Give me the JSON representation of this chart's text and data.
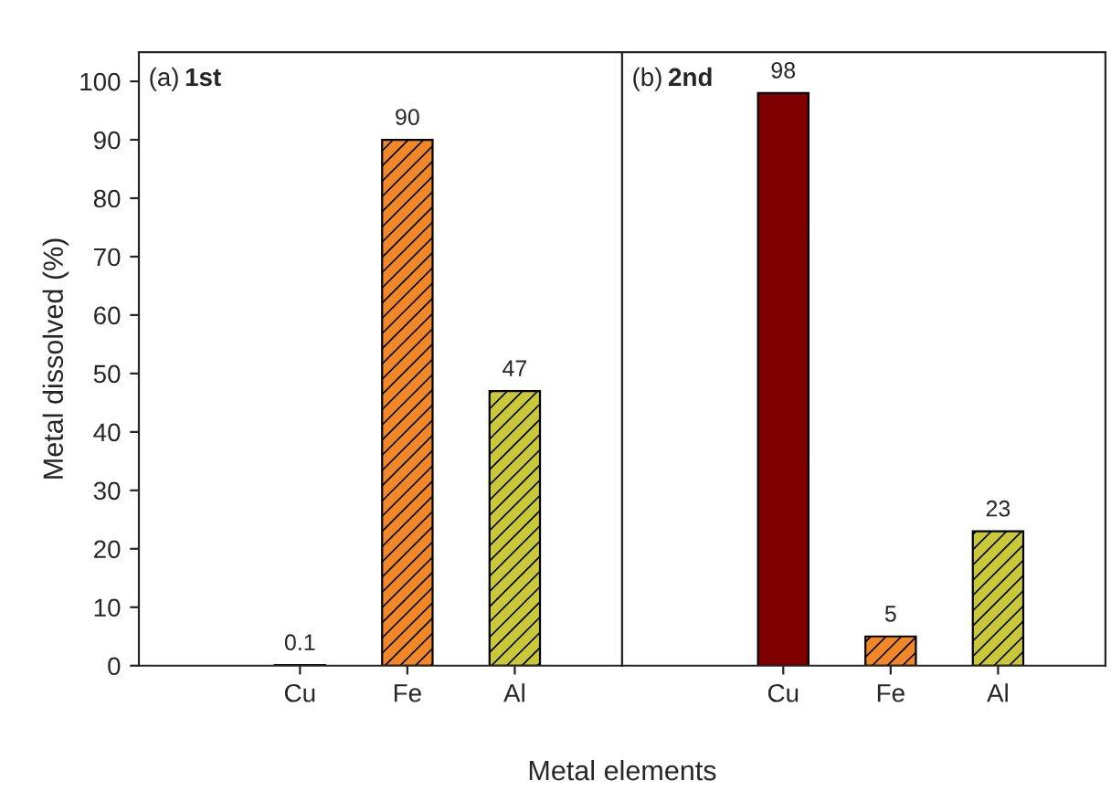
{
  "chart_data": [
    {
      "type": "bar",
      "title": "(a) 1st",
      "xlabel": "Metal elements",
      "ylabel": "Metal dissolved (%)",
      "categories": [
        "Cu",
        "Fe",
        "Al"
      ],
      "values": [
        0.1,
        90,
        47
      ],
      "colors": [
        "#800000",
        "#f0882a",
        "#c8c83a"
      ],
      "ylim": [
        0,
        105
      ],
      "yticks": [
        0,
        10,
        20,
        30,
        40,
        50,
        60,
        70,
        80,
        90,
        100
      ],
      "data_labels": true,
      "grid": false,
      "legend": false
    },
    {
      "type": "bar",
      "title": "(b) 2nd",
      "categories": [
        "Cu",
        "Fe",
        "Al"
      ],
      "values": [
        98,
        5,
        23
      ],
      "colors": [
        "#800000",
        "#f0882a",
        "#c8c83a"
      ],
      "ylim": [
        0,
        105
      ],
      "tick_labels": "x",
      "data_labels": true,
      "grid": false,
      "legend": false
    }
  ]
}
